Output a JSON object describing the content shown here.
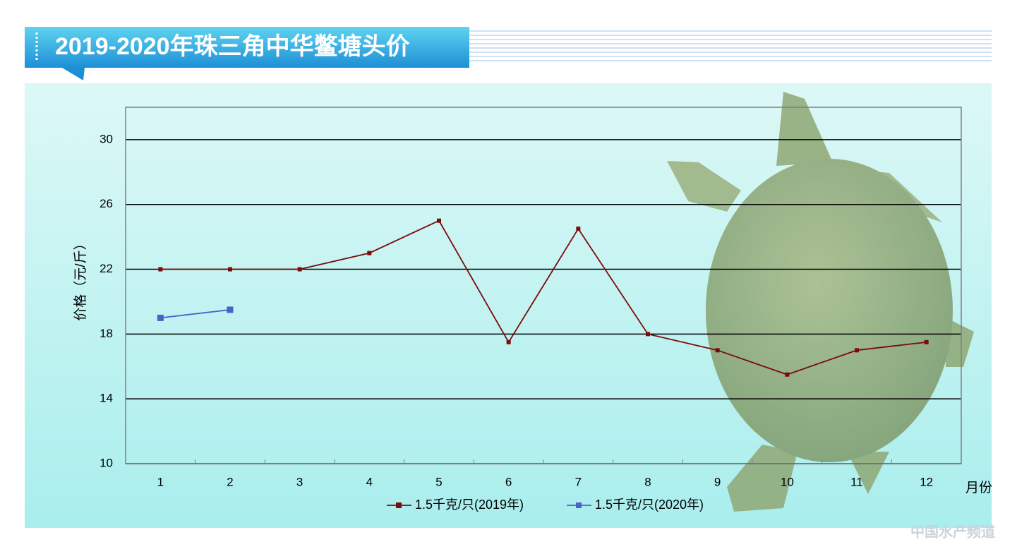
{
  "chart_data": {
    "type": "line",
    "title": "2019-2020年珠三角中华鳖塘头价",
    "x_label": "月份",
    "y_label": "价格（元/斤）",
    "watermark": "中国水产频道",
    "categories": [
      "1",
      "2",
      "3",
      "4",
      "5",
      "6",
      "7",
      "8",
      "9",
      "10",
      "11",
      "12"
    ],
    "series": [
      {
        "name": "1.5千克/只(2019年)",
        "color": "#7a0c0c",
        "values": [
          22,
          22,
          22,
          23,
          25,
          17.5,
          24.5,
          18,
          17,
          15.5,
          17,
          17.5
        ]
      },
      {
        "name": "1.5千克/只(2020年)",
        "color": "#4a62c8",
        "values": [
          19,
          19.5,
          null,
          null,
          null,
          null,
          null,
          null,
          null,
          null,
          null,
          null
        ]
      }
    ],
    "ylim": [
      10,
      32
    ],
    "yticks": [
      10,
      14,
      18,
      22,
      26,
      30
    ],
    "grid": true,
    "legend": "bottom"
  }
}
